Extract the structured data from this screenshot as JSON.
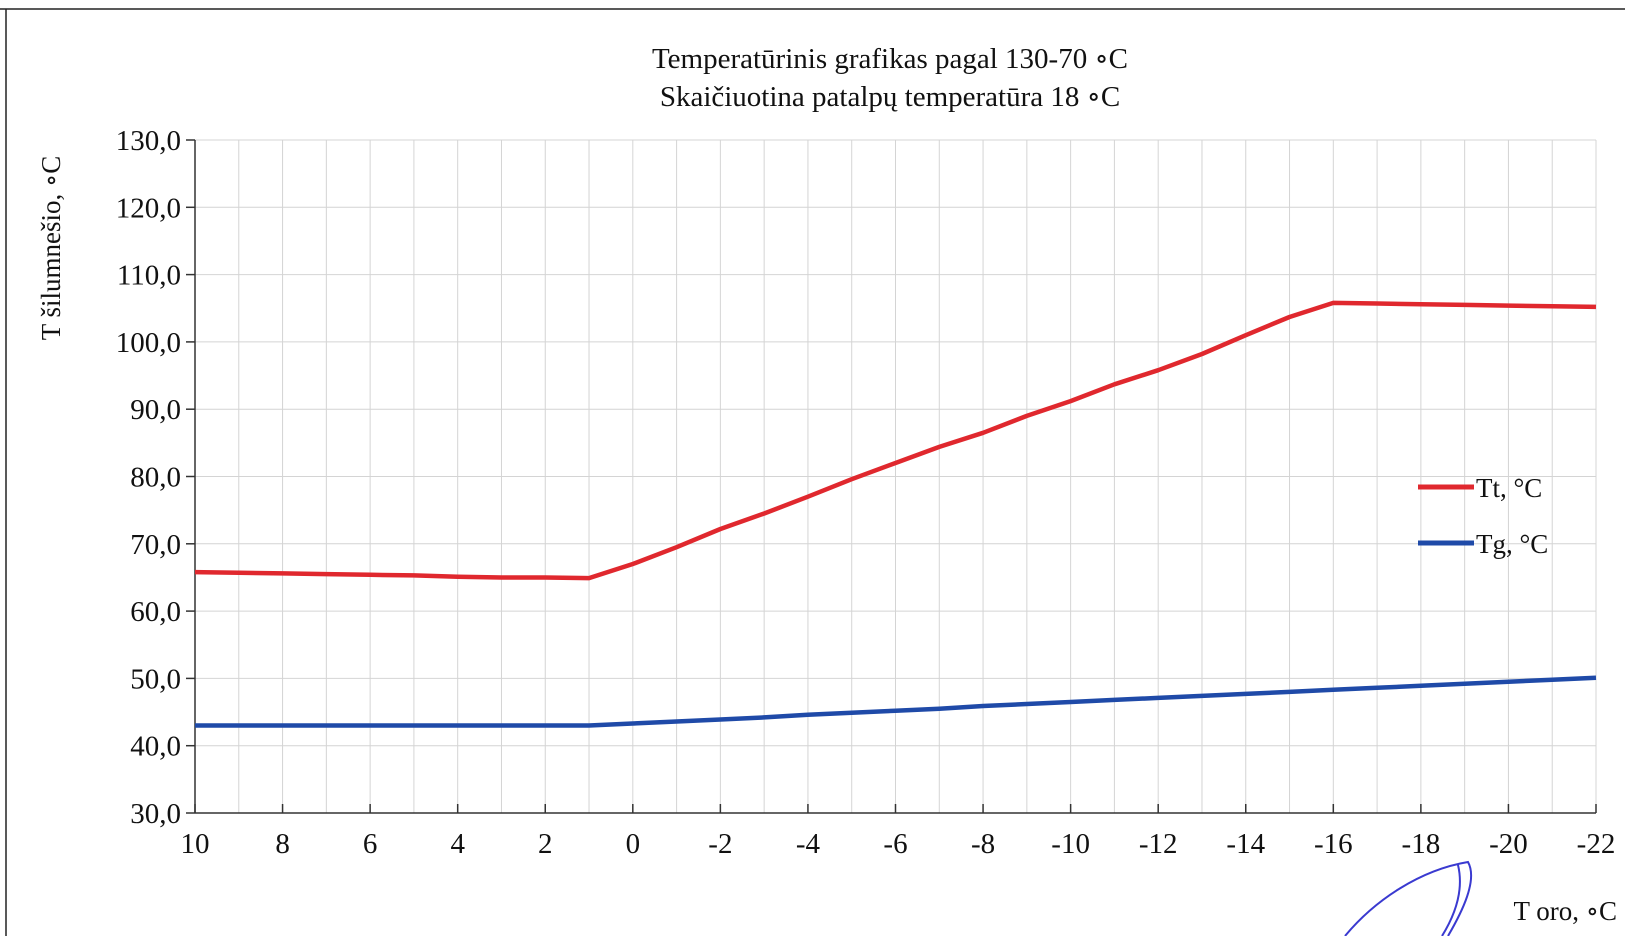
{
  "chart_data": {
    "type": "line",
    "title": "Temperatūrinis grafikas pagal 130-70 ∘C",
    "subtitle": "Skaičiuotina patalpų temperatūra 18 ∘C",
    "xlabel": "T oro, ∘C",
    "ylabel": "T šilumnešio, ∘C",
    "xlim": [
      10,
      -22
    ],
    "ylim": [
      30,
      130
    ],
    "x_ticks": [
      10,
      8,
      6,
      4,
      2,
      0,
      -2,
      -4,
      -6,
      -8,
      -10,
      -12,
      -14,
      -16,
      -18,
      -20,
      -22
    ],
    "x_tick_labels": [
      "10",
      "8",
      "6",
      "4",
      "2",
      "0",
      "-2",
      "-4",
      "-6",
      "-8",
      "-10",
      "-12",
      "-14",
      "-16",
      "-18",
      "-20",
      "-22"
    ],
    "y_ticks": [
      30,
      40,
      50,
      60,
      70,
      80,
      90,
      100,
      110,
      120,
      130
    ],
    "y_tick_labels": [
      "30,0",
      "40,0",
      "50,0",
      "60,0",
      "70,0",
      "80,0",
      "90,0",
      "100,0",
      "110,0",
      "120,0",
      "130,0"
    ],
    "grid": true,
    "legend_position": "right",
    "x": [
      10,
      9,
      8,
      7,
      6,
      5,
      4,
      3,
      2,
      1,
      0,
      -1,
      -2,
      -3,
      -4,
      -5,
      -6,
      -7,
      -8,
      -9,
      -10,
      -11,
      -12,
      -13,
      -14,
      -15,
      -16,
      -17,
      -18,
      -19,
      -20,
      -21,
      -22
    ],
    "series": [
      {
        "name": "Tt, °C",
        "color": "#e0282e",
        "values": [
          65.8,
          65.7,
          65.6,
          65.5,
          65.4,
          65.3,
          65.1,
          65.0,
          65.0,
          64.9,
          67.0,
          69.5,
          72.2,
          74.5,
          77.0,
          79.6,
          82.0,
          84.4,
          86.5,
          89.0,
          91.2,
          93.7,
          95.8,
          98.2,
          101.0,
          103.7,
          105.8,
          105.7,
          105.6,
          105.5,
          105.4,
          105.3,
          105.2
        ]
      },
      {
        "name": "Tg, °C",
        "color": "#1f4aa8",
        "values": [
          43.0,
          43.0,
          43.0,
          43.0,
          43.0,
          43.0,
          43.0,
          43.0,
          43.0,
          43.0,
          43.3,
          43.6,
          43.9,
          44.2,
          44.6,
          44.9,
          45.2,
          45.5,
          45.9,
          46.2,
          46.5,
          46.8,
          47.1,
          47.4,
          47.7,
          48.0,
          48.3,
          48.6,
          48.9,
          49.2,
          49.5,
          49.8,
          50.1
        ]
      }
    ]
  }
}
